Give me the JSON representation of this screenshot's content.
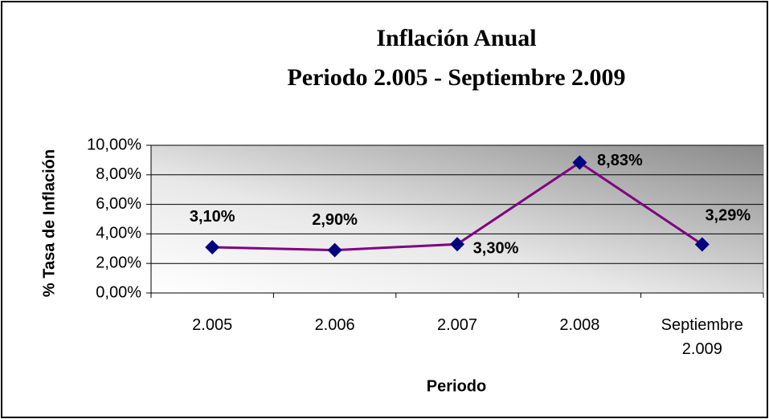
{
  "chart_data": {
    "type": "line",
    "title": "Inflación Anual",
    "subtitle": "Periodo 2.005 - Septiembre 2.009",
    "x_label": "Periodo",
    "y_label": "% Tasa de Inflación",
    "categories": [
      "2.005",
      "2.006",
      "2.007",
      "2.008",
      "Septiembre 2.009"
    ],
    "values": [
      3.1,
      2.9,
      3.3,
      8.83,
      3.29
    ],
    "value_labels": [
      "3,10%",
      "2,90%",
      "3,30%",
      "8,83%",
      "3,29%"
    ],
    "color": "#800080",
    "marker_color": "#000080",
    "ylim": [
      0,
      10
    ],
    "yticks": [
      {
        "value": 0,
        "label": "0,00%"
      },
      {
        "value": 2,
        "label": "2,00%"
      },
      {
        "value": 4,
        "label": "4,00%"
      },
      {
        "value": 6,
        "label": "6,00%"
      },
      {
        "value": 8,
        "label": "8,00%"
      },
      {
        "value": 10,
        "label": "10,00%"
      }
    ],
    "grid": true
  }
}
